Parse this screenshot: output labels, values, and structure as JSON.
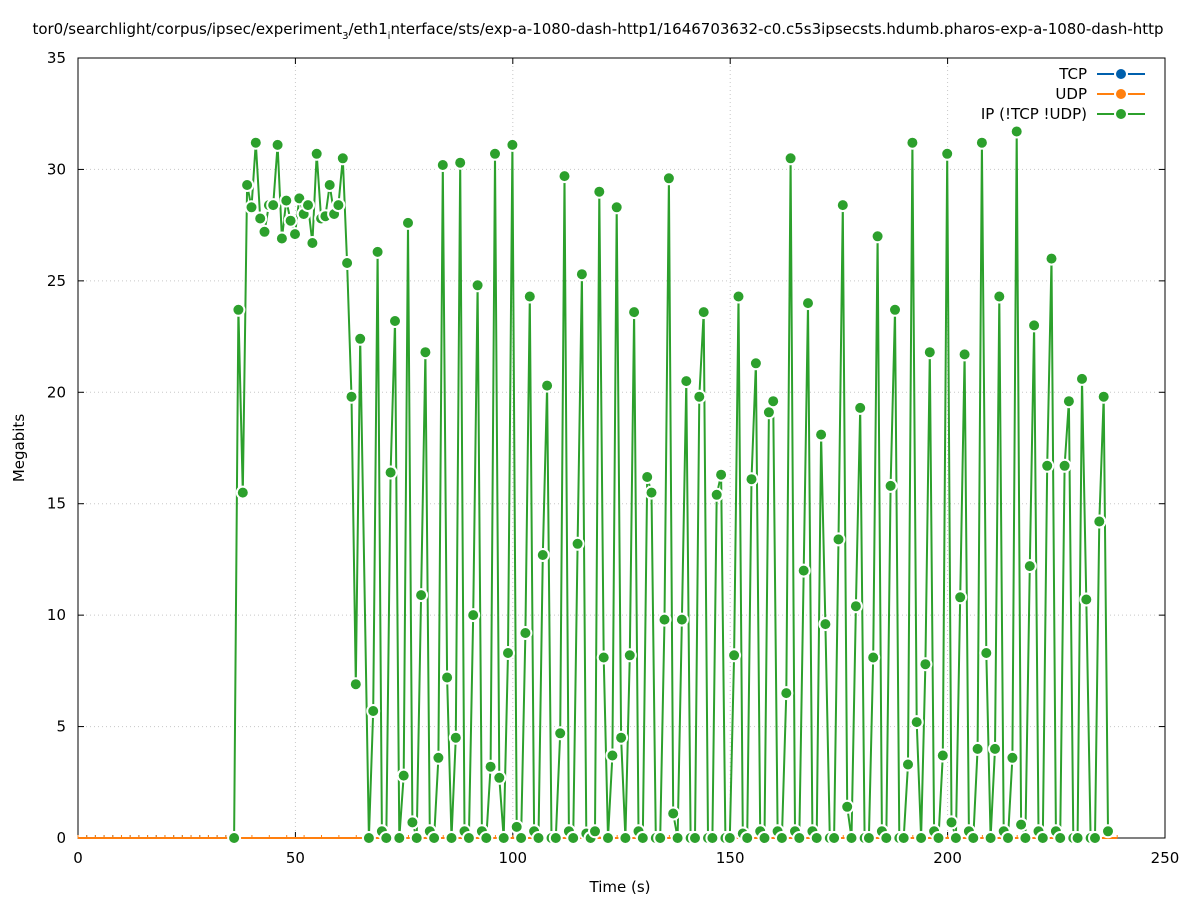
{
  "chart_data": {
    "type": "line",
    "title_parts": {
      "prefix": "tor0/searchlight/corpus/ipsec/experiment",
      "sub1": "3",
      "middle": "/eth1",
      "sub2": "i",
      "suffix": "nterface/sts/exp-a-1080-dash-http1/1646703632-c0.c5s3ipsecsts.hdumb.pharos-exp-a-1080-dash-http"
    },
    "xlabel": "Time (s)",
    "ylabel": "Megabits",
    "xlim": [
      0,
      250
    ],
    "ylim": [
      0,
      35
    ],
    "x_ticks": [
      0,
      50,
      100,
      150,
      200,
      250
    ],
    "y_ticks": [
      0,
      5,
      10,
      15,
      20,
      25,
      30,
      35
    ],
    "grid": true,
    "legend_position": "top-right",
    "colors": {
      "tcp": "#0060ad",
      "udp": "#ff7f0e",
      "ip": "#2ca02c"
    },
    "series": [
      {
        "name": "TCP",
        "key": "tcp",
        "points": [
          [
            0,
            0
          ],
          [
            2,
            0
          ],
          [
            4,
            0
          ],
          [
            6,
            0
          ],
          [
            8,
            0
          ],
          [
            10,
            0
          ],
          [
            12,
            0
          ],
          [
            14,
            0
          ],
          [
            16,
            0
          ],
          [
            18,
            0
          ],
          [
            20,
            0
          ],
          [
            22,
            0
          ],
          [
            24,
            0
          ],
          [
            26,
            0
          ],
          [
            28,
            0
          ],
          [
            30,
            0
          ],
          [
            32,
            0
          ],
          [
            34,
            0
          ],
          [
            36,
            0
          ]
        ]
      },
      {
        "name": "UDP",
        "key": "udp",
        "points": [
          [
            0,
            0
          ],
          [
            2,
            0
          ],
          [
            4,
            0
          ],
          [
            6,
            0
          ],
          [
            8,
            0
          ],
          [
            10,
            0
          ],
          [
            12,
            0
          ],
          [
            14,
            0
          ],
          [
            16,
            0
          ],
          [
            18,
            0
          ],
          [
            20,
            0
          ],
          [
            22,
            0
          ],
          [
            24,
            0
          ],
          [
            26,
            0
          ],
          [
            28,
            0
          ],
          [
            30,
            0
          ],
          [
            32,
            0
          ],
          [
            34,
            0
          ],
          [
            36,
            0
          ],
          [
            40,
            0
          ],
          [
            44,
            0
          ],
          [
            48,
            0
          ],
          [
            52,
            0
          ],
          [
            56,
            0
          ],
          [
            60,
            0
          ],
          [
            64,
            0
          ],
          [
            68,
            0
          ],
          [
            72,
            0
          ],
          [
            76,
            0
          ],
          [
            80,
            0
          ],
          [
            84,
            0
          ],
          [
            88,
            0
          ],
          [
            92,
            0
          ],
          [
            96,
            0
          ],
          [
            100,
            0
          ],
          [
            104,
            0
          ],
          [
            108,
            0
          ],
          [
            112,
            0
          ],
          [
            116,
            0
          ],
          [
            120,
            0
          ],
          [
            124,
            0
          ],
          [
            128,
            0
          ],
          [
            132,
            0
          ],
          [
            136,
            0
          ],
          [
            140,
            0
          ],
          [
            144,
            0
          ],
          [
            148,
            0
          ],
          [
            152,
            0
          ],
          [
            156,
            0
          ],
          [
            160,
            0
          ],
          [
            164,
            0
          ],
          [
            168,
            0
          ],
          [
            172,
            0
          ],
          [
            176,
            0
          ],
          [
            180,
            0
          ],
          [
            184,
            0
          ],
          [
            188,
            0
          ],
          [
            192,
            0
          ],
          [
            196,
            0
          ],
          [
            200,
            0
          ],
          [
            204,
            0
          ],
          [
            208,
            0
          ],
          [
            212,
            0
          ],
          [
            216,
            0
          ],
          [
            220,
            0
          ],
          [
            224,
            0
          ],
          [
            228,
            0
          ],
          [
            232,
            0
          ],
          [
            236,
            0
          ],
          [
            239,
            0
          ]
        ]
      },
      {
        "name": "IP (!TCP  !UDP)",
        "key": "ip",
        "points": [
          [
            35.9,
            0
          ],
          [
            36.9,
            23.7
          ],
          [
            37.9,
            15.5
          ],
          [
            38.9,
            29.3
          ],
          [
            39.9,
            28.3
          ],
          [
            40.9,
            31.2
          ],
          [
            41.9,
            27.8
          ],
          [
            42.9,
            27.2
          ],
          [
            43.9,
            28.4
          ],
          [
            44.9,
            28.4
          ],
          [
            45.9,
            31.1
          ],
          [
            46.9,
            26.9
          ],
          [
            47.9,
            28.6
          ],
          [
            48.9,
            27.7
          ],
          [
            49.9,
            27.1
          ],
          [
            50.9,
            28.7
          ],
          [
            51.9,
            28.0
          ],
          [
            52.9,
            28.4
          ],
          [
            53.9,
            26.7
          ],
          [
            54.9,
            30.7
          ],
          [
            55.9,
            27.8
          ],
          [
            56.9,
            27.9
          ],
          [
            57.9,
            29.3
          ],
          [
            58.9,
            28.0
          ],
          [
            59.9,
            28.4
          ],
          [
            60.9,
            30.5
          ],
          [
            61.9,
            25.8
          ],
          [
            62.9,
            19.8
          ],
          [
            63.9,
            6.9
          ],
          [
            64.9,
            22.4
          ],
          [
            66.9,
            0
          ],
          [
            67.9,
            5.7
          ],
          [
            68.9,
            26.3
          ],
          [
            69.9,
            0.3
          ],
          [
            70.9,
            0
          ],
          [
            71.9,
            16.4
          ],
          [
            72.9,
            23.2
          ],
          [
            73.9,
            0
          ],
          [
            74.9,
            2.8
          ],
          [
            75.9,
            27.6
          ],
          [
            76.9,
            0.7
          ],
          [
            77.9,
            0
          ],
          [
            78.9,
            10.9
          ],
          [
            79.9,
            21.8
          ],
          [
            80.9,
            0.3
          ],
          [
            81.9,
            0
          ],
          [
            82.9,
            3.6
          ],
          [
            83.9,
            30.2
          ],
          [
            84.9,
            7.2
          ],
          [
            85.9,
            0
          ],
          [
            86.9,
            4.5
          ],
          [
            87.9,
            30.3
          ],
          [
            88.9,
            0.3
          ],
          [
            89.9,
            0
          ],
          [
            90.9,
            10.0
          ],
          [
            91.9,
            24.8
          ],
          [
            92.9,
            0.3
          ],
          [
            93.9,
            0
          ],
          [
            94.9,
            3.2
          ],
          [
            95.9,
            30.7
          ],
          [
            96.9,
            2.7
          ],
          [
            97.9,
            0
          ],
          [
            98.9,
            8.3
          ],
          [
            99.9,
            31.1
          ],
          [
            100.9,
            0.5
          ],
          [
            101.9,
            0
          ],
          [
            102.9,
            9.2
          ],
          [
            103.9,
            24.3
          ],
          [
            104.9,
            0.3
          ],
          [
            105.9,
            0
          ],
          [
            106.9,
            12.7
          ],
          [
            107.9,
            20.3
          ],
          [
            108.9,
            0
          ],
          [
            109.9,
            0
          ],
          [
            110.9,
            4.7
          ],
          [
            111.9,
            29.7
          ],
          [
            112.9,
            0.3
          ],
          [
            113.9,
            0
          ],
          [
            114.9,
            13.2
          ],
          [
            115.9,
            25.3
          ],
          [
            116.9,
            0.2
          ],
          [
            117.9,
            0
          ],
          [
            118.9,
            0.3
          ],
          [
            119.9,
            29.0
          ],
          [
            120.9,
            8.1
          ],
          [
            121.9,
            0
          ],
          [
            122.9,
            3.7
          ],
          [
            123.9,
            28.3
          ],
          [
            124.9,
            4.5
          ],
          [
            125.9,
            0
          ],
          [
            126.9,
            8.2
          ],
          [
            127.9,
            23.6
          ],
          [
            128.9,
            0.3
          ],
          [
            129.9,
            0
          ],
          [
            130.9,
            16.2
          ],
          [
            131.9,
            15.5
          ],
          [
            132.9,
            0
          ],
          [
            133.9,
            0
          ],
          [
            134.9,
            9.8
          ],
          [
            135.9,
            29.6
          ],
          [
            136.9,
            1.1
          ],
          [
            137.9,
            0
          ],
          [
            138.9,
            9.8
          ],
          [
            139.9,
            20.5
          ],
          [
            140.9,
            0
          ],
          [
            141.9,
            0
          ],
          [
            142.9,
            19.8
          ],
          [
            143.9,
            23.6
          ],
          [
            144.9,
            0
          ],
          [
            145.9,
            0
          ],
          [
            146.9,
            15.4
          ],
          [
            147.9,
            16.3
          ],
          [
            148.9,
            0
          ],
          [
            149.9,
            0
          ],
          [
            150.9,
            8.2
          ],
          [
            151.9,
            24.3
          ],
          [
            152.9,
            0.2
          ],
          [
            153.9,
            0
          ],
          [
            154.9,
            16.1
          ],
          [
            155.9,
            21.3
          ],
          [
            156.9,
            0.3
          ],
          [
            157.9,
            0
          ],
          [
            158.9,
            19.1
          ],
          [
            159.9,
            19.6
          ],
          [
            160.9,
            0.3
          ],
          [
            161.9,
            0
          ],
          [
            162.9,
            6.5
          ],
          [
            163.9,
            30.5
          ],
          [
            164.9,
            0.3
          ],
          [
            165.9,
            0
          ],
          [
            166.9,
            12.0
          ],
          [
            167.9,
            24.0
          ],
          [
            168.9,
            0.3
          ],
          [
            169.9,
            0
          ],
          [
            170.9,
            18.1
          ],
          [
            171.9,
            9.6
          ],
          [
            172.9,
            0
          ],
          [
            173.9,
            0
          ],
          [
            174.9,
            13.4
          ],
          [
            175.9,
            28.4
          ],
          [
            176.9,
            1.4
          ],
          [
            177.9,
            0
          ],
          [
            178.9,
            10.4
          ],
          [
            179.9,
            19.3
          ],
          [
            180.9,
            0
          ],
          [
            181.9,
            0
          ],
          [
            182.9,
            8.1
          ],
          [
            183.9,
            27.0
          ],
          [
            184.9,
            0.3
          ],
          [
            185.9,
            0
          ],
          [
            186.9,
            15.8
          ],
          [
            187.9,
            23.7
          ],
          [
            188.9,
            0
          ],
          [
            189.9,
            0
          ],
          [
            190.9,
            3.3
          ],
          [
            191.9,
            31.2
          ],
          [
            192.9,
            5.2
          ],
          [
            193.9,
            0
          ],
          [
            194.9,
            7.8
          ],
          [
            195.9,
            21.8
          ],
          [
            196.9,
            0.3
          ],
          [
            197.9,
            0
          ],
          [
            198.9,
            3.7
          ],
          [
            199.9,
            30.7
          ],
          [
            200.9,
            0.7
          ],
          [
            201.9,
            0
          ],
          [
            202.9,
            10.8
          ],
          [
            203.9,
            21.7
          ],
          [
            204.9,
            0.3
          ],
          [
            205.9,
            0
          ],
          [
            206.9,
            4.0
          ],
          [
            207.9,
            31.2
          ],
          [
            208.9,
            8.3
          ],
          [
            209.9,
            0
          ],
          [
            210.9,
            4.0
          ],
          [
            211.9,
            24.3
          ],
          [
            212.9,
            0.3
          ],
          [
            213.9,
            0
          ],
          [
            214.9,
            3.6
          ],
          [
            215.9,
            31.7
          ],
          [
            216.9,
            0.6
          ],
          [
            217.9,
            0
          ],
          [
            218.9,
            12.2
          ],
          [
            219.9,
            23.0
          ],
          [
            220.9,
            0.3
          ],
          [
            221.9,
            0
          ],
          [
            222.9,
            16.7
          ],
          [
            223.9,
            26.0
          ],
          [
            224.9,
            0.3
          ],
          [
            225.9,
            0
          ],
          [
            226.9,
            16.7
          ],
          [
            227.9,
            19.6
          ],
          [
            228.9,
            0
          ],
          [
            229.9,
            0
          ],
          [
            230.9,
            20.6
          ],
          [
            231.9,
            10.7
          ],
          [
            232.9,
            0
          ],
          [
            233.9,
            0
          ],
          [
            234.9,
            14.2
          ],
          [
            235.9,
            19.8
          ],
          [
            236.9,
            0.3
          ]
        ]
      }
    ]
  }
}
